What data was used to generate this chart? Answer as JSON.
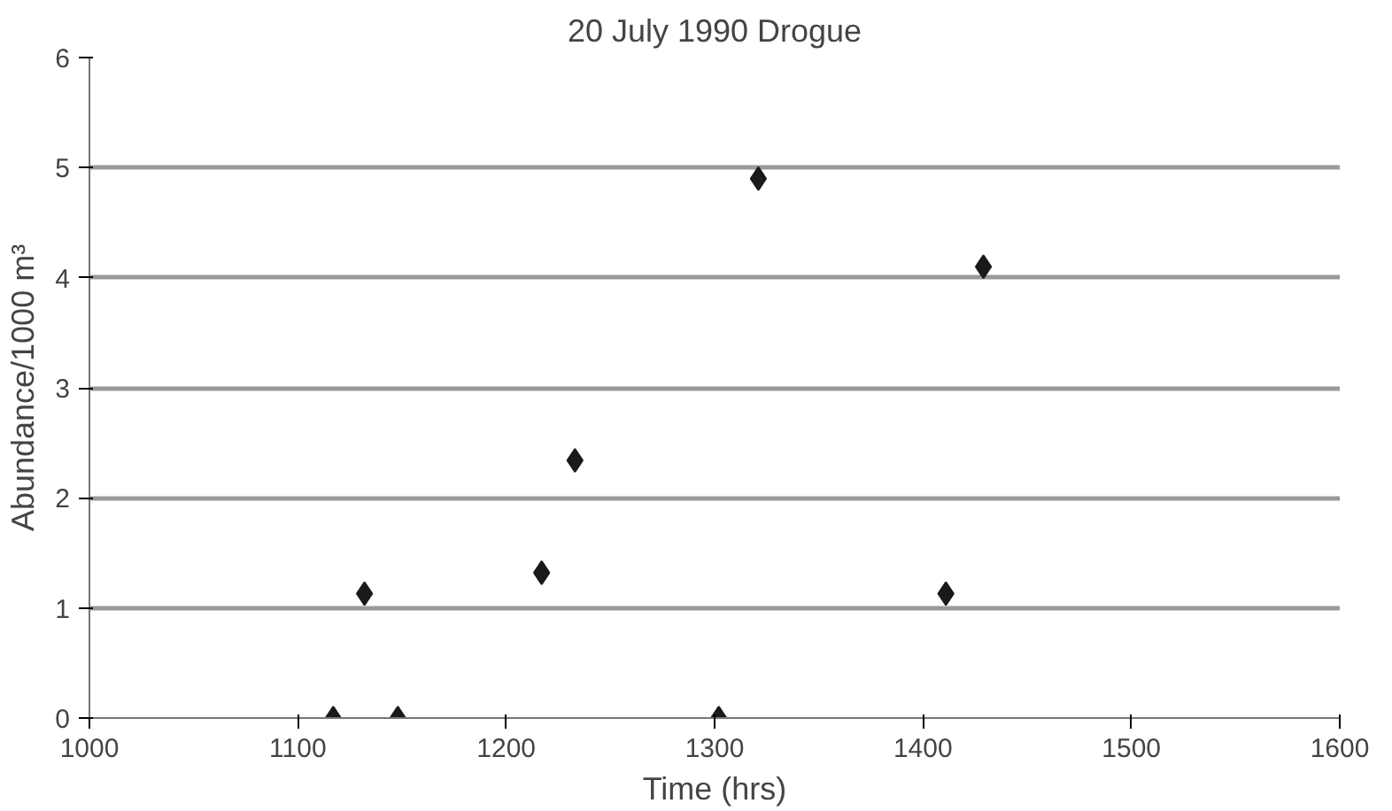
{
  "chart_data": {
    "type": "scatter",
    "title": "20 July 1990 Drogue",
    "xlabel": "Time (hrs)",
    "ylabel": "Abundance/1000 m³",
    "x": [
      1117,
      1132,
      1148,
      1217,
      1233,
      1302,
      1321,
      1411,
      1429
    ],
    "values": [
      0,
      1.13,
      0,
      1.32,
      2.34,
      0,
      4.9,
      1.13,
      4.1
    ],
    "color": "#1a1a1a",
    "marker": "diamond",
    "xlim": [
      1000,
      1600
    ],
    "xticks": [
      1000,
      1100,
      1200,
      1300,
      1400,
      1500,
      1600
    ],
    "ylim": [
      0,
      6
    ],
    "yticks": [
      0,
      1,
      2,
      3,
      4,
      5,
      6
    ],
    "grid": "y"
  }
}
